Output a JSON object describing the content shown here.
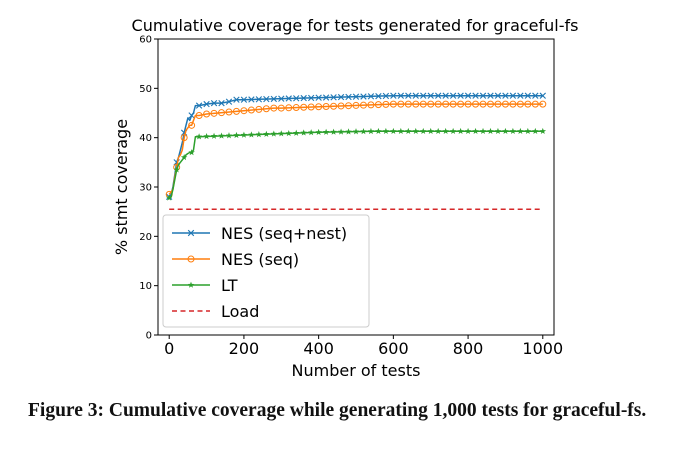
{
  "chart_data": {
    "type": "line",
    "title": "Cumulative coverage for tests generated for graceful-fs",
    "xlabel": "Number of tests",
    "ylabel": "% stmt coverage",
    "xlim": [
      -30,
      1030
    ],
    "ylim": [
      0,
      60
    ],
    "xticks": [
      0,
      200,
      400,
      600,
      800,
      1000
    ],
    "yticks": [
      0,
      10,
      20,
      30,
      40,
      50,
      60
    ],
    "grid": false,
    "legend_position": "lower-left",
    "series": [
      {
        "name": "NES (seq+nest)",
        "color": "#1f77b4",
        "marker": "x",
        "x": [
          0,
          5,
          10,
          15,
          20,
          25,
          30,
          35,
          40,
          45,
          50,
          55,
          60,
          65,
          70,
          80,
          100,
          120,
          140,
          160,
          180,
          200,
          600,
          1000
        ],
        "y": [
          28,
          28.5,
          30,
          32.5,
          35,
          36,
          37.5,
          39,
          41,
          42.5,
          44,
          43.5,
          44.5,
          45,
          46.5,
          46.5,
          46.8,
          47,
          47,
          47.3,
          47.7,
          47.7,
          48.5,
          48.5
        ]
      },
      {
        "name": "NES (seq)",
        "color": "#ff7f0e",
        "marker": "o",
        "x": [
          0,
          5,
          10,
          15,
          20,
          25,
          30,
          35,
          40,
          45,
          50,
          55,
          60,
          65,
          70,
          80,
          100,
          280,
          300,
          600,
          1000
        ],
        "y": [
          28.5,
          29,
          29.5,
          32,
          34,
          36,
          36.5,
          37.5,
          40,
          41.5,
          42,
          42.5,
          42.5,
          43.5,
          44.5,
          44.5,
          44.8,
          46,
          46,
          46.8,
          46.8
        ]
      },
      {
        "name": "LT",
        "color": "#2ca02c",
        "marker": "*",
        "x": [
          0,
          5,
          10,
          15,
          20,
          25,
          30,
          35,
          40,
          45,
          50,
          55,
          60,
          65,
          70,
          80,
          400,
          550,
          1000
        ],
        "y": [
          27.8,
          28,
          29.5,
          31.5,
          33.5,
          34.5,
          35,
          35.5,
          36,
          36.5,
          36.8,
          37,
          37,
          37.5,
          40.2,
          40.2,
          41.1,
          41.3,
          41.3
        ]
      },
      {
        "name": "Load",
        "color": "#d62728",
        "marker": "none",
        "dashed": true,
        "x": [
          0,
          1000
        ],
        "y": [
          25.5,
          25.5
        ]
      }
    ]
  },
  "caption": "Figure 3: Cumulative coverage while generating 1,000 tests for graceful-fs."
}
